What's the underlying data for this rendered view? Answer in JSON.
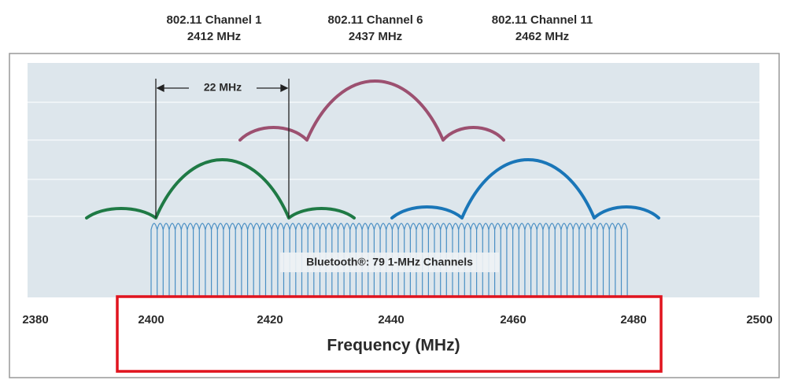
{
  "header": {
    "channels": [
      {
        "name": "802.11 Channel 1",
        "freq": "2412 MHz"
      },
      {
        "name": "802.11 Channel 6",
        "freq": "2437 MHz"
      },
      {
        "name": "802.11 Channel 11",
        "freq": "2462 MHz"
      }
    ]
  },
  "annotation": "22 MHz",
  "bluetooth": "Bluetooth®: 79 1-MHz Channels",
  "axis": {
    "ticks": [
      "2380",
      "2400",
      "2420",
      "2440",
      "2460",
      "2480",
      "2500"
    ],
    "label": "Frequency (MHz)"
  }
}
